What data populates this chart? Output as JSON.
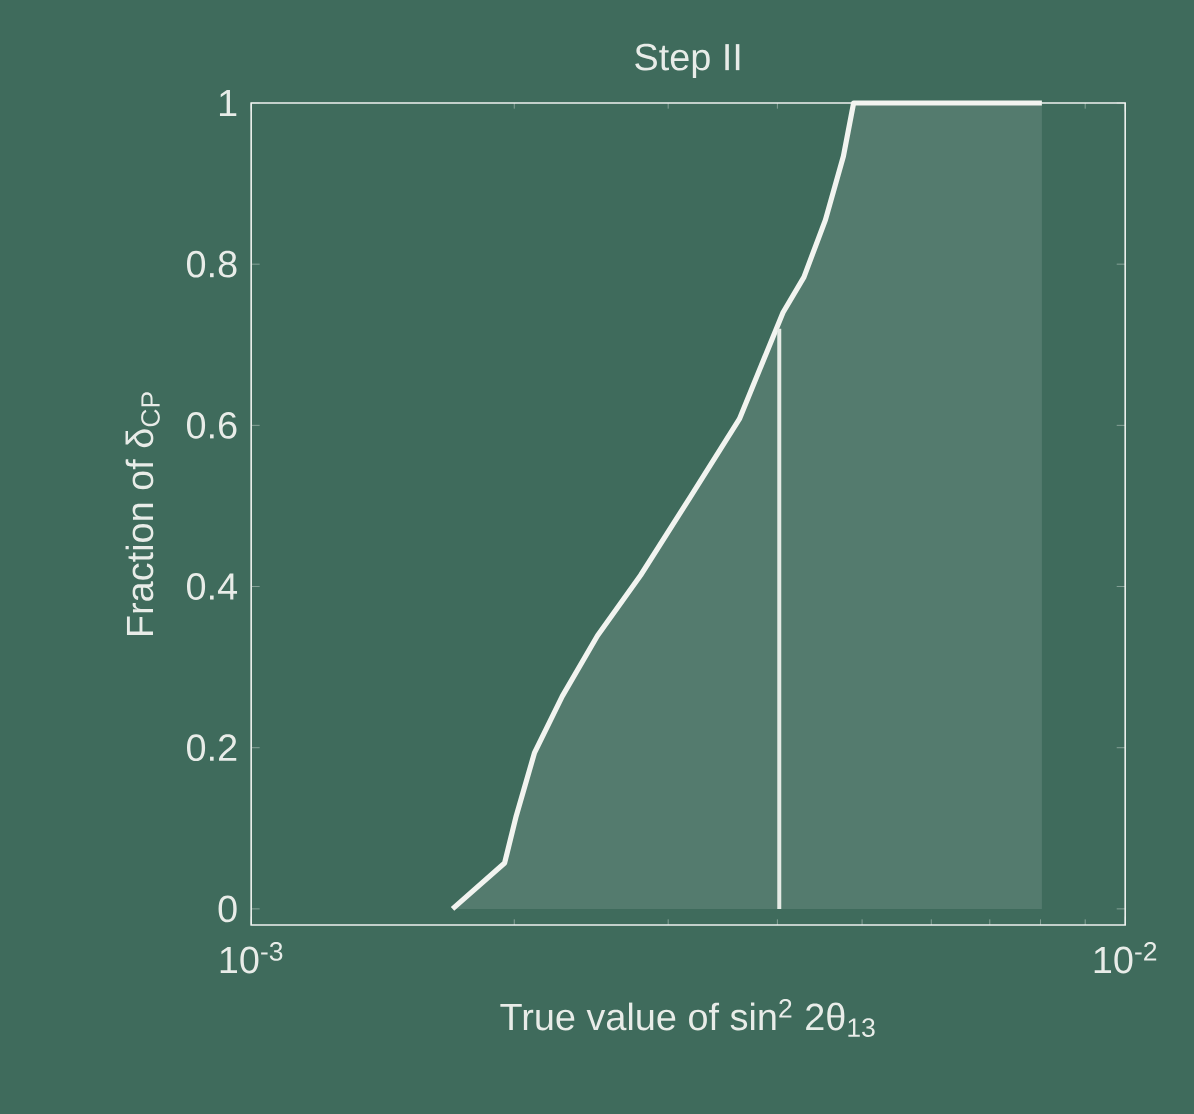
{
  "chart_data": {
    "type": "area",
    "title": "Step II",
    "xlabel": "True value of sin$^{2}$ 2θ$_{13}$",
    "ylabel": "Fraction of δ$_{CP}$",
    "log": "x",
    "xlim": [
      0.001,
      0.01
    ],
    "xticks": [
      {
        "value": 0.001,
        "label": "10$^{-3}$"
      },
      {
        "value": 0.01,
        "label": "10$^{-2}$"
      }
    ],
    "ylim": [
      -0.02,
      1
    ],
    "yticks": [
      0,
      0.2,
      0.4,
      0.6,
      0.8,
      1
    ],
    "series": [
      {
        "color": "#f2f4f0",
        "x": [
          0.0017,
          0.00195,
          0.00201,
          0.00211,
          0.00227,
          0.00249,
          0.00279,
          0.00318,
          0.00362,
          0.00406,
          0.00429,
          0.00454,
          0.00476,
          0.00489,
          0.00803
        ],
        "values": [
          0,
          0.057,
          0.115,
          0.194,
          0.264,
          0.339,
          0.414,
          0.511,
          0.608,
          0.74,
          0.784,
          0.855,
          0.934,
          1,
          1
        ]
      },
      {
        "type": "line",
        "color": "#e6ebe6",
        "x": [
          0.00402,
          0.00402
        ],
        "values": [
          0,
          0.72
        ]
      }
    ]
  }
}
